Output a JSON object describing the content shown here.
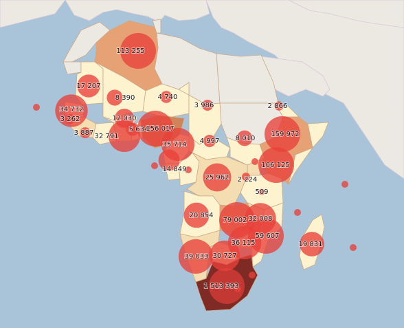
{
  "colors": {
    "ocean": "#a9c4d9",
    "land_outside": "#ece8e2",
    "border": "#c9a98a",
    "bubble": "#e8403a",
    "scale_lowest": "#fdf3cf",
    "scale_low": "#f5ddb2",
    "scale_mid": "#e6a275",
    "scale_high": "#d0845a",
    "scale_highest": "#7f2a24"
  },
  "bubbles": [
    {
      "id": "algeria",
      "label": "113 255",
      "value": 113255
    },
    {
      "id": "mauritania",
      "label": "17 207",
      "value": 17207
    },
    {
      "id": "mali",
      "label": "8 390",
      "value": 8390
    },
    {
      "id": "niger",
      "label": "4 740",
      "value": 4740
    },
    {
      "id": "chad",
      "label": "3 986",
      "value": 3986
    },
    {
      "id": "senegal",
      "label": "34 732",
      "value": 34732
    },
    {
      "id": "gambia",
      "label": "3 262",
      "value": 3262
    },
    {
      "id": "cabo-verde",
      "label": "",
      "value": 0
    },
    {
      "id": "guinea",
      "label": "3 887",
      "value": 3887
    },
    {
      "id": "cote-divoire",
      "label": "32 791",
      "value": 32791
    },
    {
      "id": "burkina-faso",
      "label": "12 030",
      "value": 12030
    },
    {
      "id": "ghana",
      "label": "5 634",
      "value": 5634
    },
    {
      "id": "nigeria",
      "label": "156 017",
      "value": 156017
    },
    {
      "id": "cameroon",
      "label": "35 714",
      "value": 35714
    },
    {
      "id": "car",
      "label": "4 997",
      "value": 4997
    },
    {
      "id": "south-sudan",
      "label": "8 010",
      "value": 8010
    },
    {
      "id": "eritrea",
      "label": "2 866",
      "value": 2866
    },
    {
      "id": "ethiopia",
      "label": "159 972",
      "value": 159972
    },
    {
      "id": "kenya",
      "label": "106 125",
      "value": 106125
    },
    {
      "id": "uganda",
      "label": "",
      "value": 0
    },
    {
      "id": "rwanda",
      "label": "2 224",
      "value": 2224
    },
    {
      "id": "tanzania",
      "label": "509",
      "value": 509
    },
    {
      "id": "gabon",
      "label": "14 849",
      "value": 14849
    },
    {
      "id": "sao-tome",
      "label": "",
      "value": 0
    },
    {
      "id": "congo",
      "label": "",
      "value": 0
    },
    {
      "id": "drc",
      "label": "25 962",
      "value": 25962
    },
    {
      "id": "angola",
      "label": "20 854",
      "value": 20854
    },
    {
      "id": "zambia",
      "label": "79 002",
      "value": 79002
    },
    {
      "id": "malawi",
      "label": "32 008",
      "value": 32008
    },
    {
      "id": "mozambique",
      "label": "59 607",
      "value": 59607
    },
    {
      "id": "zimbabwe",
      "label": "36 115",
      "value": 36115
    },
    {
      "id": "namibia",
      "label": "39 033",
      "value": 39033
    },
    {
      "id": "botswana",
      "label": "30 727",
      "value": 30727
    },
    {
      "id": "madagascar",
      "label": "19 831",
      "value": 19831
    },
    {
      "id": "seychelles",
      "label": "",
      "value": 0
    },
    {
      "id": "comoros",
      "label": "",
      "value": 0
    },
    {
      "id": "mauritius",
      "label": "",
      "value": 0
    },
    {
      "id": "eswatini",
      "label": "",
      "value": 0
    },
    {
      "id": "lesotho",
      "label": "",
      "value": 0
    },
    {
      "id": "south-africa",
      "label": "1 513 393",
      "value": 1513393
    }
  ]
}
